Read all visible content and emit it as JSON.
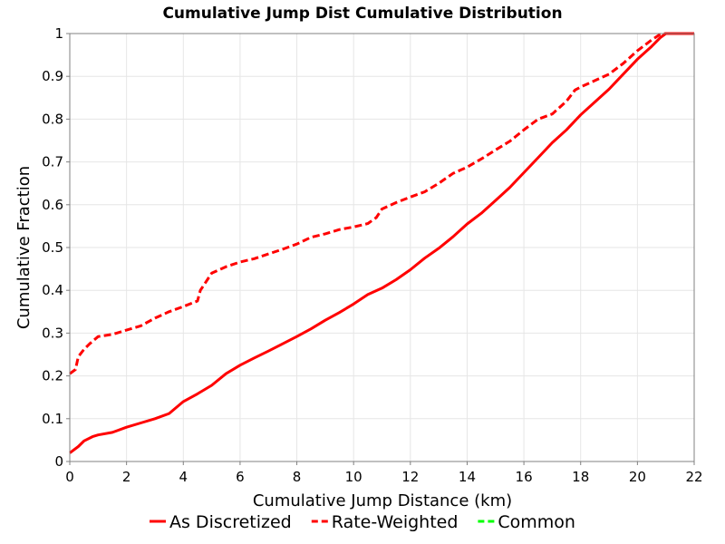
{
  "chart_data": {
    "type": "line",
    "title": "Cumulative Jump Dist Cumulative Distribution",
    "xlabel": "Cumulative Jump Distance (km)",
    "ylabel": "Cumulative Fraction",
    "xlim": [
      0,
      22
    ],
    "ylim": [
      0,
      1
    ],
    "x_ticks": [
      0,
      2,
      4,
      6,
      8,
      10,
      12,
      14,
      16,
      18,
      20,
      22
    ],
    "y_ticks": [
      0,
      0.1,
      0.2,
      0.3,
      0.4,
      0.5,
      0.6,
      0.7,
      0.8,
      0.9,
      1
    ],
    "x_tick_labels": [
      "0",
      "2",
      "4",
      "6",
      "8",
      "10",
      "12",
      "14",
      "16",
      "18",
      "20",
      "22"
    ],
    "y_tick_labels": [
      "0",
      "0.1",
      "0.2",
      "0.3",
      "0.4",
      "0.5",
      "0.6",
      "0.7",
      "0.8",
      "0.9",
      "1"
    ],
    "grid": true,
    "legend_position": "bottom",
    "series": [
      {
        "name": "As Discretized",
        "color": "#ff0000",
        "style": "solid",
        "points": [
          [
            0,
            0.02
          ],
          [
            0.3,
            0.035
          ],
          [
            0.5,
            0.048
          ],
          [
            0.8,
            0.058
          ],
          [
            1.0,
            0.062
          ],
          [
            1.5,
            0.068
          ],
          [
            2.0,
            0.08
          ],
          [
            2.5,
            0.09
          ],
          [
            3.0,
            0.1
          ],
          [
            3.5,
            0.112
          ],
          [
            4.0,
            0.14
          ],
          [
            4.5,
            0.158
          ],
          [
            5.0,
            0.178
          ],
          [
            5.5,
            0.205
          ],
          [
            6.0,
            0.225
          ],
          [
            6.5,
            0.242
          ],
          [
            7.0,
            0.258
          ],
          [
            7.5,
            0.275
          ],
          [
            8.0,
            0.292
          ],
          [
            8.5,
            0.31
          ],
          [
            9.0,
            0.33
          ],
          [
            9.5,
            0.348
          ],
          [
            10.0,
            0.368
          ],
          [
            10.5,
            0.39
          ],
          [
            11.0,
            0.405
          ],
          [
            11.5,
            0.425
          ],
          [
            12.0,
            0.448
          ],
          [
            12.5,
            0.475
          ],
          [
            13.0,
            0.498
          ],
          [
            13.5,
            0.525
          ],
          [
            14.0,
            0.555
          ],
          [
            14.5,
            0.58
          ],
          [
            15.0,
            0.61
          ],
          [
            15.5,
            0.64
          ],
          [
            16.0,
            0.675
          ],
          [
            16.5,
            0.71
          ],
          [
            17.0,
            0.745
          ],
          [
            17.5,
            0.775
          ],
          [
            18.0,
            0.81
          ],
          [
            18.5,
            0.84
          ],
          [
            19.0,
            0.87
          ],
          [
            19.5,
            0.905
          ],
          [
            20.0,
            0.94
          ],
          [
            20.5,
            0.97
          ],
          [
            20.8,
            0.99
          ],
          [
            21.0,
            1.0
          ],
          [
            22.0,
            1.0
          ]
        ]
      },
      {
        "name": "Rate-Weighted",
        "color": "#ff0000",
        "style": "dashed",
        "points": [
          [
            0,
            0.205
          ],
          [
            0.2,
            0.215
          ],
          [
            0.3,
            0.245
          ],
          [
            0.5,
            0.262
          ],
          [
            0.7,
            0.275
          ],
          [
            1.0,
            0.292
          ],
          [
            1.5,
            0.297
          ],
          [
            2.0,
            0.307
          ],
          [
            2.5,
            0.317
          ],
          [
            3.0,
            0.335
          ],
          [
            3.5,
            0.35
          ],
          [
            4.0,
            0.362
          ],
          [
            4.5,
            0.375
          ],
          [
            4.6,
            0.4
          ],
          [
            5.0,
            0.44
          ],
          [
            5.5,
            0.455
          ],
          [
            6.0,
            0.466
          ],
          [
            6.5,
            0.474
          ],
          [
            7.0,
            0.485
          ],
          [
            7.5,
            0.496
          ],
          [
            8.0,
            0.508
          ],
          [
            8.5,
            0.524
          ],
          [
            9.0,
            0.532
          ],
          [
            9.5,
            0.542
          ],
          [
            10.0,
            0.548
          ],
          [
            10.5,
            0.556
          ],
          [
            10.8,
            0.57
          ],
          [
            11.0,
            0.59
          ],
          [
            11.5,
            0.605
          ],
          [
            12.0,
            0.618
          ],
          [
            12.5,
            0.63
          ],
          [
            13.0,
            0.65
          ],
          [
            13.5,
            0.673
          ],
          [
            14.0,
            0.688
          ],
          [
            14.5,
            0.707
          ],
          [
            15.0,
            0.728
          ],
          [
            15.5,
            0.748
          ],
          [
            16.0,
            0.775
          ],
          [
            16.5,
            0.8
          ],
          [
            17.0,
            0.812
          ],
          [
            17.5,
            0.842
          ],
          [
            17.8,
            0.868
          ],
          [
            18.0,
            0.875
          ],
          [
            18.5,
            0.89
          ],
          [
            19.0,
            0.905
          ],
          [
            19.5,
            0.93
          ],
          [
            20.0,
            0.96
          ],
          [
            20.5,
            0.985
          ],
          [
            20.8,
            0.998
          ],
          [
            21.0,
            1.0
          ],
          [
            22.0,
            1.0
          ]
        ]
      },
      {
        "name": "Common",
        "color": "#00ff00",
        "style": "dashed",
        "points": []
      }
    ]
  }
}
